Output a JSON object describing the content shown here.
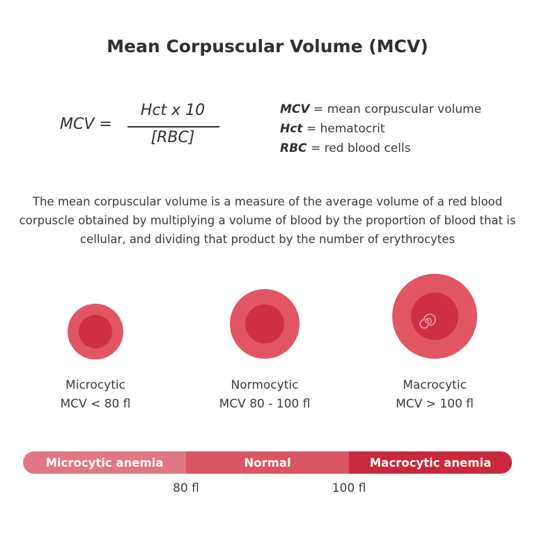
{
  "title": "Mean Corpuscular Volume (MCV)",
  "formula": {
    "lhs": "MCV =",
    "numerator": "Hct x 10",
    "denominator": "[RBC]"
  },
  "legend": [
    {
      "term": "MCV",
      "definition": "= mean corpuscular volume"
    },
    {
      "term": "Hct",
      "definition": "= hematocrit"
    },
    {
      "term": "RBC",
      "definition": "= red blood cells"
    }
  ],
  "description": "The mean corpuscular volume is a measure of the average volume of a red blood corpuscle obtained by multiplying a volume of blood by the proportion of blood that is cellular, and dividing that product by the number of erythrocytes",
  "cells": [
    {
      "name": "Microcytic",
      "range": "MCV < 80 fl"
    },
    {
      "name": "Normocytic",
      "range": "MCV 80 - 100 fl"
    },
    {
      "name": "Macrocytic",
      "range": "MCV > 100 fl"
    }
  ],
  "bar": {
    "segments": [
      {
        "label": "Microcytic anemia",
        "color": "#e07781"
      },
      {
        "label": "Normal",
        "color": "#d95562"
      },
      {
        "label": "Macrocytic anemia",
        "color": "#c9283c"
      }
    ],
    "ticks": [
      "80 fl",
      "100 fl"
    ]
  },
  "colors": {
    "cell_outer": "#e25563",
    "cell_inner": "#cf2f43",
    "title": "#2f2f36"
  }
}
